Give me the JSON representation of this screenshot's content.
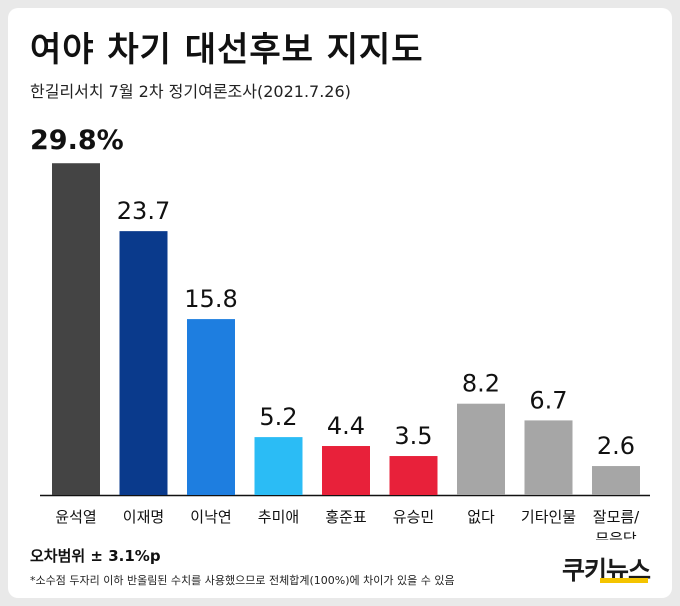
{
  "header": {
    "title": "여야 차기 대선후보 지지도",
    "subtitle": "한길리서치 7월 2차 정기여론조사(2021.7.26)"
  },
  "chart_data": {
    "type": "bar",
    "title": "여야 차기 대선후보 지지도",
    "subtitle": "한길리서치 7월 2차 정기여론조사(2021.7.26)",
    "categories": [
      "윤석열",
      "이재명",
      "이낙연",
      "추미애",
      "홍준표",
      "유승민",
      "없다",
      "기타인물",
      "잘모름/\n무응답"
    ],
    "values": [
      29.8,
      23.7,
      15.8,
      5.2,
      4.4,
      3.5,
      8.2,
      6.7,
      2.6
    ],
    "value_labels": [
      "29.8%",
      "23.7",
      "15.8",
      "5.2",
      "4.4",
      "3.5",
      "8.2",
      "6.7",
      "2.6"
    ],
    "colors": [
      "#444444",
      "#0a3a8c",
      "#1e7ee0",
      "#2bbcf5",
      "#e8213a",
      "#e8213a",
      "#a6a6a6",
      "#a6a6a6",
      "#a6a6a6"
    ],
    "ylim": [
      0,
      30
    ],
    "xlabel": "",
    "ylabel": "",
    "grid": false,
    "legend": "none"
  },
  "footer": {
    "margin_of_error": "오차범위 ± 3.1%p",
    "note": "*소수점 두자리 이하 반올림된 수치를 사용했으므로 전체합계(100%)에 차이가 있을 수 있음"
  },
  "brand": {
    "logo_text": "쿠키뉴스",
    "accent_color": "#f4c400"
  }
}
